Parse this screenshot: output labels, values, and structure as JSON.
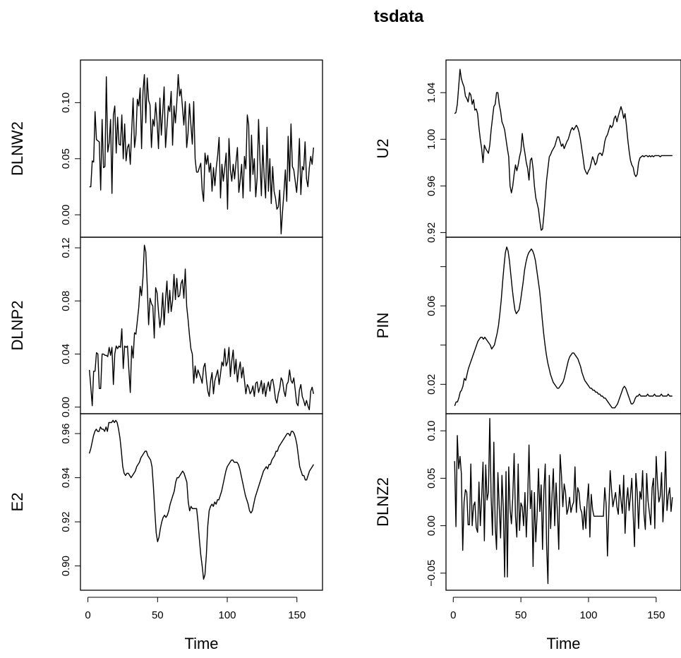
{
  "chart_data": {
    "type": "line",
    "title": "tsdata",
    "xlabel": "Time",
    "x_range": [
      1,
      160
    ],
    "x_ticks": [
      0,
      50,
      100,
      150
    ],
    "panels": [
      {
        "name": "DLNW2",
        "ylim": [
          -0.02,
          0.138
        ],
        "yticks": [
          0.0,
          0.05,
          0.1
        ],
        "ytick_labels": [
          "0.00",
          "0.05",
          "0.10"
        ],
        "values": [
          0.025,
          0.025,
          0.048,
          0.047,
          0.092,
          0.067,
          0.066,
          0.065,
          0.022,
          0.085,
          0.042,
          0.043,
          0.123,
          0.056,
          0.064,
          0.085,
          0.019,
          0.089,
          0.097,
          0.055,
          0.087,
          0.063,
          0.062,
          0.089,
          0.05,
          0.081,
          0.048,
          0.06,
          0.063,
          0.045,
          0.075,
          0.104,
          0.06,
          0.071,
          0.103,
          0.097,
          0.113,
          0.059,
          0.11,
          0.125,
          0.082,
          0.122,
          0.102,
          0.098,
          0.06,
          0.085,
          0.079,
          0.1,
          0.083,
          0.059,
          0.104,
          0.071,
          0.091,
          0.114,
          0.06,
          0.078,
          0.097,
          0.092,
          0.11,
          0.062,
          0.097,
          0.082,
          0.1,
          0.125,
          0.106,
          0.112,
          0.096,
          0.08,
          0.101,
          0.06,
          0.073,
          0.099,
          0.08,
          0.063,
          0.101,
          0.05,
          0.038,
          0.038,
          0.042,
          0.046,
          0.022,
          0.012,
          0.055,
          0.045,
          0.053,
          0.038,
          0.046,
          0.021,
          0.042,
          0.026,
          0.042,
          0.053,
          0.069,
          0.015,
          0.045,
          0.03,
          0.042,
          0.055,
          0.005,
          0.068,
          0.04,
          0.03,
          0.045,
          0.032,
          0.047,
          0.06,
          0.02,
          0.031,
          0.045,
          0.015,
          0.052,
          0.041,
          0.089,
          0.08,
          0.021,
          0.071,
          0.036,
          0.05,
          0.016,
          0.033,
          0.085,
          0.048,
          0.017,
          0.062,
          0.033,
          0.015,
          0.078,
          0.021,
          0.05,
          0.01,
          0.043,
          0.021,
          0.015,
          0.005,
          0.007,
          0.022,
          -0.017,
          0.003,
          0.02,
          0.04,
          0.012,
          0.07,
          0.03,
          0.081,
          0.043,
          0.04,
          0.03,
          0.02,
          0.037,
          0.068,
          0.018,
          0.043,
          0.04,
          0.065,
          0.032,
          0.025,
          0.042,
          0.052,
          0.045,
          0.06
        ],
        "plot_order": "see_series"
      }
    ]
  }
}
